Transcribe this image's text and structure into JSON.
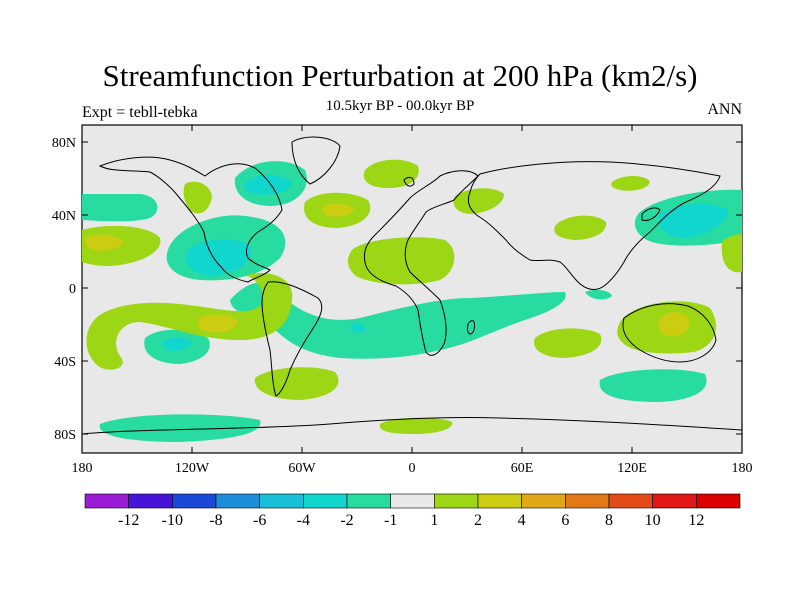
{
  "title": "Streamfunction Perturbation at 200 hPa (km2/s)",
  "subtitle": "10.5kyr BP - 00.0kyr BP",
  "left_label": "Expt = tebll-tebka",
  "right_label": "ANN",
  "lat_labels": [
    "80N",
    "40N",
    "0",
    "40S",
    "80S"
  ],
  "lon_labels": [
    "180",
    "120W",
    "60W",
    "0",
    "60E",
    "120E",
    "180"
  ],
  "colorbar": {
    "labels": [
      "-12",
      "-10",
      "-8",
      "-6",
      "-4",
      "-2",
      "-1",
      "1",
      "2",
      "4",
      "6",
      "8",
      "10",
      "12"
    ],
    "colors": [
      "#9a1bd6",
      "#4713d8",
      "#1c48d9",
      "#1c8fd8",
      "#18bfd8",
      "#10d6cd",
      "#28dba0",
      "#e8e8e8",
      "#9cd614",
      "#cccc10",
      "#e0a818",
      "#e27818",
      "#e24a18",
      "#e01818",
      "#dc0000"
    ]
  },
  "colors": {
    "land_outline": "#000000",
    "background": "#e8e8e8",
    "neg_1": "#28dba0",
    "neg_2": "#10d6cd",
    "neg_3": "#18bfd8",
    "pos_1": "#9cd614",
    "pos_2": "#cccc10"
  }
}
